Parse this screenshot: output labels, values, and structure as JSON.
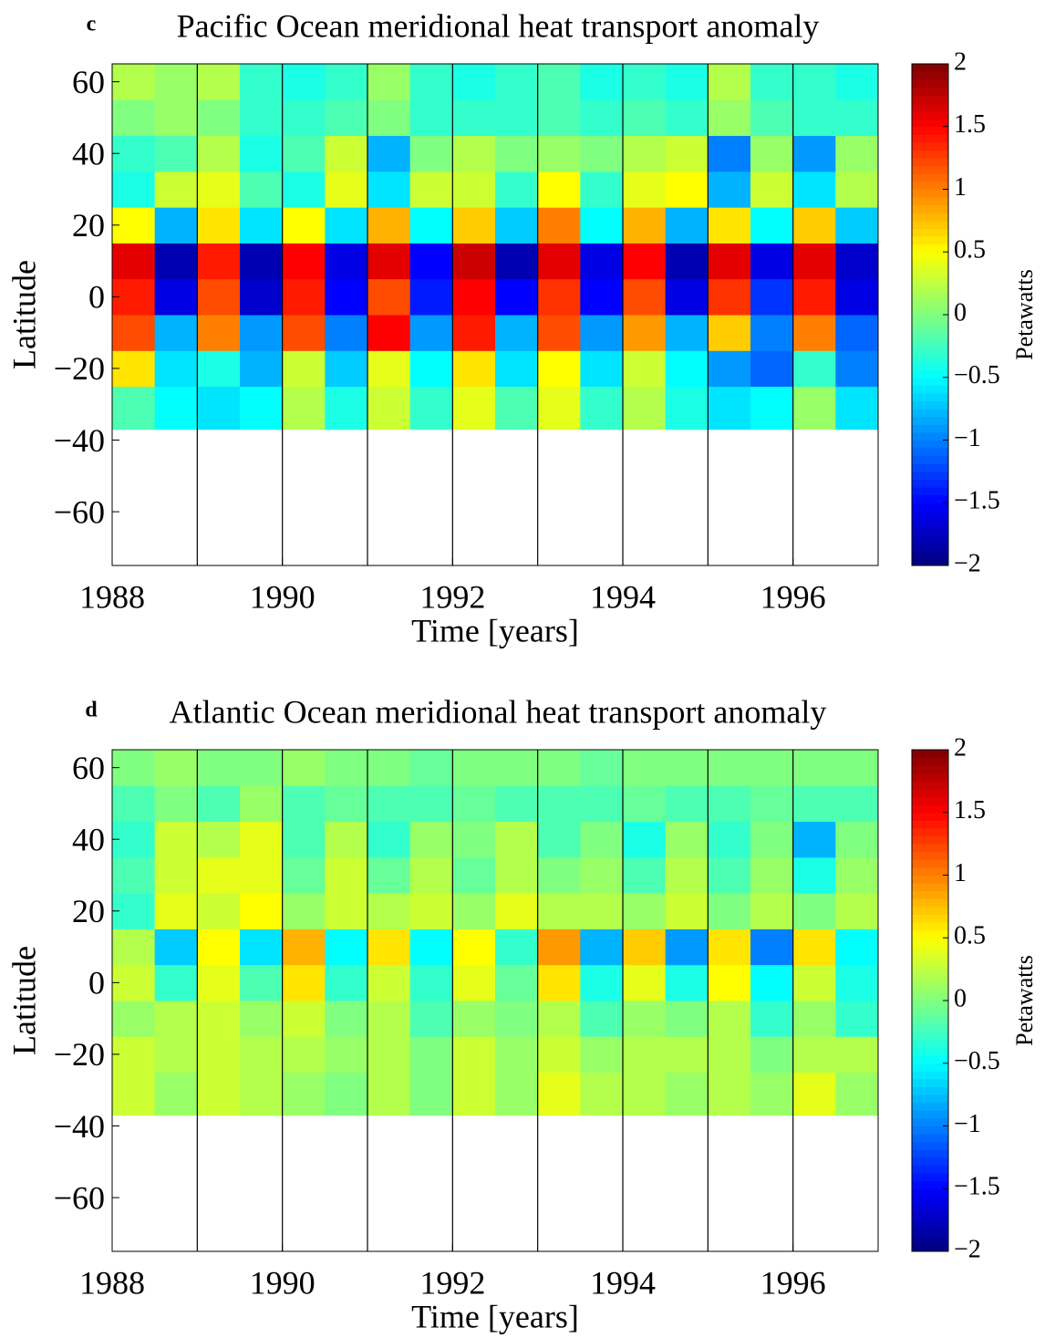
{
  "chart_data": [
    {
      "type": "heatmap",
      "panel_label": "c",
      "title": "Pacific Ocean meridional heat transport anomaly",
      "xlabel": "Time [years]",
      "ylabel": "Latitude",
      "colorbar_label": "Petawatts",
      "colormap": "jet",
      "xbins": [
        1988,
        1988.5,
        1989,
        1989.5,
        1990,
        1990.5,
        1991,
        1991.5,
        1992,
        1992.5,
        1993,
        1993.5,
        1994,
        1994.5,
        1995,
        1995.5,
        1996,
        1996.5,
        1997
      ],
      "ybins": [
        -37,
        -25,
        -15,
        -5,
        5,
        15,
        25,
        35,
        45,
        55,
        65
      ],
      "values": [
        [
          -0.2,
          -0.5,
          -0.6,
          -0.5,
          0.2,
          -0.4,
          0.3,
          -0.3,
          0.4,
          -0.2,
          0.4,
          -0.3,
          0.2,
          -0.4,
          -0.6,
          -0.5,
          0.1,
          -0.6
        ],
        [
          0.6,
          -0.6,
          -0.4,
          -0.8,
          0.3,
          -0.7,
          0.4,
          -0.5,
          0.6,
          -0.6,
          0.5,
          -0.6,
          0.3,
          -0.5,
          -0.9,
          -1.1,
          -0.3,
          -1.0
        ],
        [
          1.2,
          -0.8,
          1.0,
          -0.9,
          1.2,
          -1.0,
          1.5,
          -0.9,
          1.4,
          -0.8,
          1.2,
          -0.9,
          0.9,
          -0.8,
          0.7,
          -1.0,
          1.0,
          -1.1
        ],
        [
          1.4,
          -1.6,
          1.2,
          -1.7,
          1.4,
          -1.5,
          1.2,
          -1.4,
          1.5,
          -1.5,
          1.3,
          -1.5,
          1.2,
          -1.6,
          1.3,
          -1.3,
          1.4,
          -1.6
        ],
        [
          1.6,
          -1.8,
          1.4,
          -1.8,
          1.5,
          -1.6,
          1.6,
          -1.5,
          1.7,
          -1.8,
          1.6,
          -1.6,
          1.5,
          -1.8,
          1.6,
          -1.6,
          1.6,
          -1.7
        ],
        [
          0.5,
          -0.8,
          0.6,
          -0.6,
          0.5,
          -0.6,
          0.8,
          -0.5,
          0.7,
          -0.7,
          1.0,
          -0.5,
          0.8,
          -0.8,
          0.6,
          -0.5,
          0.7,
          -0.7
        ],
        [
          -0.4,
          0.3,
          0.4,
          -0.2,
          -0.4,
          0.4,
          -0.6,
          0.3,
          0.3,
          -0.3,
          0.5,
          -0.3,
          0.4,
          0.5,
          -0.8,
          0.3,
          -0.6,
          0.2
        ],
        [
          -0.3,
          -0.2,
          0.2,
          -0.4,
          -0.2,
          0.3,
          -0.8,
          0,
          0.2,
          0,
          0.1,
          0,
          0.2,
          0.3,
          -1.0,
          0.1,
          -0.9,
          0.1
        ],
        [
          0,
          0.1,
          0,
          -0.3,
          -0.3,
          -0.2,
          0,
          -0.3,
          -0.3,
          -0.3,
          -0.2,
          -0.3,
          -0.2,
          -0.3,
          0.1,
          -0.2,
          -0.3,
          -0.3
        ],
        [
          0.2,
          0.1,
          0.2,
          -0.3,
          -0.4,
          -0.3,
          0.1,
          -0.3,
          -0.4,
          -0.3,
          -0.2,
          -0.4,
          -0.3,
          -0.4,
          0.2,
          -0.3,
          -0.3,
          -0.4
        ]
      ],
      "vlines": [
        1989,
        1990,
        1991,
        1992,
        1993,
        1994,
        1995,
        1996
      ],
      "xlim": [
        1988,
        1997
      ],
      "xticks": [
        1988,
        1990,
        1992,
        1994,
        1996
      ],
      "ylim": [
        -75,
        65
      ],
      "yticks": [
        {
          "value": -60,
          "label": "−60"
        },
        {
          "value": -40,
          "label": "−40"
        },
        {
          "value": -20,
          "label": "−20"
        },
        0,
        20,
        40,
        60
      ],
      "clim": [
        -2,
        2
      ],
      "cticks": [
        {
          "value": -2,
          "label": "−2"
        },
        {
          "value": -1.5,
          "label": "−1.5"
        },
        {
          "value": -1,
          "label": "−1"
        },
        {
          "value": -0.5,
          "label": "−0.5"
        },
        0,
        0.5,
        1,
        1.5,
        2
      ]
    },
    {
      "type": "heatmap",
      "panel_label": "d",
      "title": "Atlantic Ocean meridional heat transport anomaly",
      "xlabel": "Time [years]",
      "ylabel": "Latitude",
      "colorbar_label": "Petawatts",
      "colormap": "jet",
      "xbins": [
        1988,
        1988.5,
        1989,
        1989.5,
        1990,
        1990.5,
        1991,
        1991.5,
        1992,
        1992.5,
        1993,
        1993.5,
        1994,
        1994.5,
        1995,
        1995.5,
        1996,
        1996.5,
        1997
      ],
      "ybins": [
        -37,
        -25,
        -15,
        -5,
        5,
        15,
        25,
        35,
        45,
        55,
        65
      ],
      "values": [
        [
          0.3,
          0.1,
          0.3,
          0.2,
          0.1,
          0,
          0.2,
          0,
          0.3,
          0.1,
          0.4,
          0.2,
          0.2,
          0.1,
          0.2,
          0.1,
          0.4,
          0.1
        ],
        [
          0.3,
          0.2,
          0.3,
          0.2,
          0.2,
          0.1,
          0.2,
          0,
          0.3,
          0.1,
          0.3,
          0.1,
          0.2,
          0.2,
          0.2,
          0,
          0.2,
          0.2
        ],
        [
          0.1,
          0.2,
          0.3,
          0.1,
          0.3,
          0,
          0.2,
          -0.2,
          0.1,
          0,
          0.2,
          -0.2,
          0.1,
          0,
          0.2,
          -0.3,
          0.1,
          -0.3
        ],
        [
          0.3,
          -0.3,
          0.4,
          -0.2,
          0.6,
          -0.3,
          0.3,
          -0.3,
          0.4,
          -0.1,
          0.6,
          -0.4,
          0.4,
          -0.4,
          0.5,
          -0.5,
          0.3,
          -0.4
        ],
        [
          0.2,
          -0.7,
          0.5,
          -0.6,
          0.8,
          -0.5,
          0.6,
          -0.5,
          0.5,
          -0.3,
          0.9,
          -0.8,
          0.7,
          -0.9,
          0.6,
          -1.0,
          0.6,
          -0.5
        ],
        [
          -0.3,
          0.4,
          0.3,
          0.5,
          0.1,
          0.3,
          0.2,
          0.3,
          0.1,
          0.4,
          0.2,
          0.2,
          0.1,
          0.3,
          0,
          0.2,
          0,
          0.2
        ],
        [
          -0.2,
          0.3,
          0.4,
          0.4,
          -0.1,
          0.3,
          -0.1,
          0.2,
          -0.1,
          0.2,
          0,
          0.1,
          -0.2,
          0.2,
          -0.2,
          0.1,
          -0.4,
          0.1
        ],
        [
          -0.3,
          0.3,
          0.2,
          0.4,
          -0.2,
          0.2,
          -0.3,
          0.1,
          0,
          0.2,
          -0.2,
          0,
          -0.4,
          0.1,
          -0.3,
          0,
          -0.8,
          0
        ],
        [
          -0.2,
          0,
          -0.2,
          0.1,
          -0.2,
          -0.1,
          -0.2,
          -0.2,
          -0.1,
          -0.2,
          -0.2,
          -0.2,
          -0.1,
          -0.2,
          -0.2,
          -0.1,
          -0.2,
          -0.2
        ],
        [
          0,
          0.1,
          0,
          0,
          0.1,
          0,
          0,
          -0.1,
          0,
          0,
          0,
          -0.1,
          0,
          0,
          0,
          0,
          0,
          0
        ]
      ],
      "vlines": [
        1989,
        1990,
        1991,
        1992,
        1993,
        1994,
        1995,
        1996
      ],
      "xlim": [
        1988,
        1997
      ],
      "xticks": [
        1988,
        1990,
        1992,
        1994,
        1996
      ],
      "ylim": [
        -75,
        65
      ],
      "yticks": [
        {
          "value": -60,
          "label": "−60"
        },
        {
          "value": -40,
          "label": "−40"
        },
        {
          "value": -20,
          "label": "−20"
        },
        0,
        20,
        40,
        60
      ],
      "clim": [
        -2,
        2
      ],
      "cticks": [
        {
          "value": -2,
          "label": "−2"
        },
        {
          "value": -1.5,
          "label": "−1.5"
        },
        {
          "value": -1,
          "label": "−1"
        },
        {
          "value": -0.5,
          "label": "−0.5"
        },
        0,
        0.5,
        1,
        1.5,
        2
      ]
    }
  ]
}
